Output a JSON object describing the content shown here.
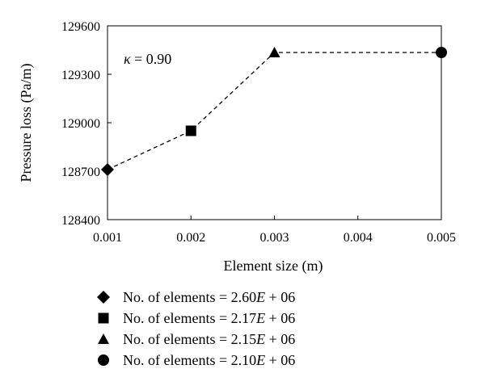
{
  "chart_data": {
    "type": "line",
    "xlabel": "Element size (m)",
    "ylabel": "Pressure loss (Pa/m)",
    "xlim": [
      0.001,
      0.005
    ],
    "ylim": [
      128400,
      129600
    ],
    "x_ticks": [
      "0.001",
      "0.002",
      "0.003",
      "0.004",
      "0.005"
    ],
    "y_ticks": [
      "128400",
      "128700",
      "129000",
      "129300",
      "129600"
    ],
    "annotation": "κ = 0.90",
    "line_style": "dashed",
    "grid": false,
    "legend_position": "bottom",
    "points": [
      {
        "x": 0.001,
        "y": 128710,
        "marker": "diamond",
        "legend": "No. of elements = 2.60E + 06"
      },
      {
        "x": 0.002,
        "y": 128950,
        "marker": "square",
        "legend": "No. of elements = 2.17E + 06"
      },
      {
        "x": 0.003,
        "y": 129435,
        "marker": "triangle",
        "legend": "No. of elements = 2.15E + 06"
      },
      {
        "x": 0.005,
        "y": 129435,
        "marker": "circle",
        "legend": "No. of elements = 2.10E + 06"
      }
    ]
  }
}
